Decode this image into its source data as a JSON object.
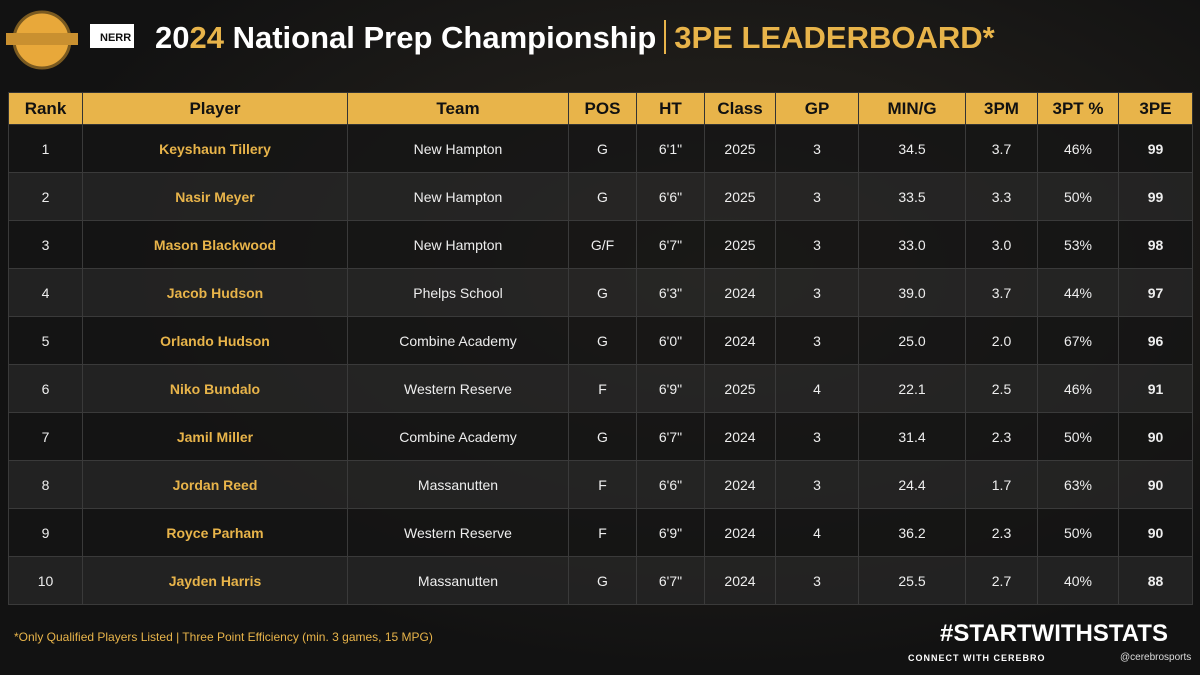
{
  "header": {
    "logo_text": "NERR",
    "title_prefix": "20",
    "title_highlight": "24",
    "title_main": " National Prep Championship",
    "title_section": "3PE LEADERBOARD",
    "title_mark": "*"
  },
  "table": {
    "columns": [
      "Rank",
      "Player",
      "Team",
      "POS",
      "HT",
      "Class",
      "GP",
      "MIN/G",
      "3PM",
      "3PT %",
      "3PE"
    ],
    "rows": [
      [
        "1",
        "Keyshaun Tillery",
        "New Hampton",
        "G",
        "6'1\"",
        "2025",
        "3",
        "34.5",
        "3.7",
        "46%",
        "99"
      ],
      [
        "2",
        "Nasir Meyer",
        "New Hampton",
        "G",
        "6'6\"",
        "2025",
        "3",
        "33.5",
        "3.3",
        "50%",
        "99"
      ],
      [
        "3",
        "Mason Blackwood",
        "New Hampton",
        "G/F",
        "6'7\"",
        "2025",
        "3",
        "33.0",
        "3.0",
        "53%",
        "98"
      ],
      [
        "4",
        "Jacob Hudson",
        "Phelps School",
        "G",
        "6'3\"",
        "2024",
        "3",
        "39.0",
        "3.7",
        "44%",
        "97"
      ],
      [
        "5",
        "Orlando Hudson",
        "Combine Academy",
        "G",
        "6'0\"",
        "2024",
        "3",
        "25.0",
        "2.0",
        "67%",
        "96"
      ],
      [
        "6",
        "Niko Bundalo",
        "Western Reserve",
        "F",
        "6'9\"",
        "2025",
        "4",
        "22.1",
        "2.5",
        "46%",
        "91"
      ],
      [
        "7",
        "Jamil Miller",
        "Combine Academy",
        "G",
        "6'7\"",
        "2024",
        "3",
        "31.4",
        "2.3",
        "50%",
        "90"
      ],
      [
        "8",
        "Jordan Reed",
        "Massanutten",
        "F",
        "6'6\"",
        "2024",
        "3",
        "24.4",
        "1.7",
        "63%",
        "90"
      ],
      [
        "9",
        "Royce Parham",
        "Western Reserve",
        "F",
        "6'9\"",
        "2024",
        "4",
        "36.2",
        "2.3",
        "50%",
        "90"
      ],
      [
        "10",
        "Jayden Harris",
        "Massanutten",
        "G",
        "6'7\"",
        "2024",
        "3",
        "25.5",
        "2.7",
        "40%",
        "88"
      ]
    ]
  },
  "footer": {
    "note": "*Only Qualified Players Listed | Three Point Efficiency (min. 3 games, 15 MPG)",
    "hashtag": "#STARTWITHSTATS",
    "connect": "CONNECT WITH CEREBRO",
    "handle": "@cerebrosports"
  }
}
